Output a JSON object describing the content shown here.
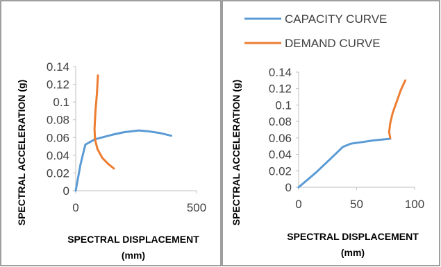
{
  "legend": {
    "capacity": "CAPACITY CURVE",
    "demand": "DEMAND CURVE"
  },
  "colors": {
    "capacity": "#5B9BD5",
    "demand": "#ED7D31",
    "axis": "#BFBFBF",
    "border": "#7F7F7F"
  },
  "chart_data": [
    {
      "type": "line",
      "xlabel_lines": [
        "SPECTRAL DISPLACEMENT",
        "(mm)"
      ],
      "ylabel": "SPECTRAL ACCELERATION (g)",
      "xlim": [
        0,
        500
      ],
      "ylim": [
        0,
        0.14
      ],
      "xticks": [
        "0",
        "500"
      ],
      "yticks": [
        "0",
        "0.02",
        "0.04",
        "0.06",
        "0.08",
        "0.1",
        "0.12",
        "0.14"
      ],
      "series": [
        {
          "name": "CAPACITY CURVE",
          "x": [
            0,
            20,
            40,
            80,
            150,
            200,
            260,
            300,
            350,
            395
          ],
          "y": [
            0,
            0.03,
            0.052,
            0.058,
            0.063,
            0.066,
            0.068,
            0.067,
            0.065,
            0.062
          ]
        },
        {
          "name": "DEMAND CURVE",
          "x": [
            158,
            135,
            110,
            90,
            80,
            78,
            82,
            88,
            92
          ],
          "y": [
            0.025,
            0.03,
            0.037,
            0.047,
            0.058,
            0.07,
            0.09,
            0.11,
            0.13
          ]
        }
      ]
    },
    {
      "type": "line",
      "xlabel_lines": [
        "SPECTRAL DISPLACEMENT",
        "(mm)"
      ],
      "ylabel": "SPECTRAL ACCELERATION (g)",
      "xlim": [
        0,
        100
      ],
      "ylim": [
        0,
        0.14
      ],
      "xticks": [
        "0",
        "50",
        "100"
      ],
      "yticks": [
        "0",
        "0.02",
        "0.04",
        "0.06",
        "0.08",
        "0.1",
        "0.12",
        "0.14"
      ],
      "series": [
        {
          "name": "CAPACITY CURVE",
          "x": [
            0,
            15,
            30,
            38,
            45,
            55,
            65,
            72,
            79
          ],
          "y": [
            0,
            0.018,
            0.038,
            0.049,
            0.053,
            0.055,
            0.057,
            0.058,
            0.059
          ]
        },
        {
          "name": "DEMAND CURVE",
          "x": [
            79,
            78,
            79,
            81,
            84,
            88,
            92
          ],
          "y": [
            0.06,
            0.067,
            0.078,
            0.09,
            0.102,
            0.118,
            0.13
          ]
        }
      ]
    }
  ]
}
